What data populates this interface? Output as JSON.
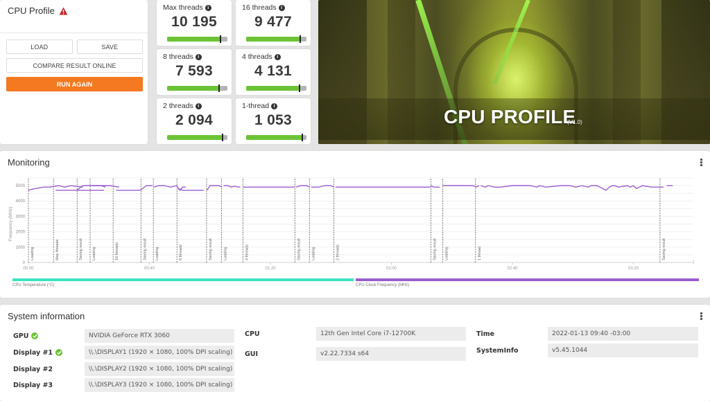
{
  "profile_panel": {
    "title": "CPU Profile",
    "warning_icon": "warning-triangle-icon",
    "buttons": {
      "load": "LOAD",
      "save": "SAVE",
      "compare": "COMPARE RESULT ONLINE",
      "run_again": "RUN AGAIN"
    }
  },
  "scores": [
    {
      "label": "Max threads",
      "value": "10 195",
      "bar_pct": 88,
      "marker_pct": 88
    },
    {
      "label": "16 threads",
      "value": "9 477",
      "bar_pct": 90,
      "marker_pct": 90
    },
    {
      "label": "8 threads",
      "value": "7 593",
      "bar_pct": 86,
      "marker_pct": 86
    },
    {
      "label": "4 threads",
      "value": "4 131",
      "bar_pct": 89,
      "marker_pct": 89
    },
    {
      "label": "2 threads",
      "value": "2 094",
      "bar_pct": 92,
      "marker_pct": 92
    },
    {
      "label": "1-thread",
      "value": "1 053",
      "bar_pct": 93,
      "marker_pct": 93
    }
  ],
  "hero": {
    "title": "CPU PROFILE",
    "version": "(V1.0)"
  },
  "monitoring": {
    "title": "Monitoring",
    "legend": [
      {
        "label": "CPU Temperature (°C)",
        "color": "#3de3c1"
      },
      {
        "label": "CPU Clock Frequency (MHz)",
        "color": "#9a5fcf"
      }
    ]
  },
  "chart_data": {
    "type": "line",
    "title": "Monitoring",
    "xlabel": "",
    "ylabel": "Frequency (MHz)",
    "ylim": [
      0,
      5500
    ],
    "yticks": [
      0,
      1000,
      2000,
      3000,
      4000,
      5000
    ],
    "xticks": [
      "00:00",
      "00:40",
      "01:20",
      "02:00",
      "02:40",
      "03:20"
    ],
    "grid": true,
    "legend_position": "bottom",
    "series": [
      {
        "name": "CPU Clock Frequency (MHz)",
        "color": "#9a5fcf",
        "segments": [
          {
            "x_sec": [
              0,
              2,
              5,
              7,
              10,
              12,
              14,
              16,
              18
            ],
            "y": [
              4700,
              4800,
              4900,
              4900,
              5000,
              4900,
              5000,
              4950,
              4900
            ]
          },
          {
            "x_sec": [
              9,
              25
            ],
            "y": [
              4700,
              4700
            ]
          },
          {
            "x_sec": [
              16,
              18,
              20,
              24,
              25.5
            ],
            "y": [
              4700,
              5000,
              5000,
              5000,
              4900
            ]
          },
          {
            "x_sec": [
              21,
              27,
              30
            ],
            "y": [
              5000,
              5000,
              4900
            ]
          },
          {
            "x_sec": [
              29,
              37
            ],
            "y": [
              4700,
              4700
            ]
          },
          {
            "x_sec": [
              37,
              39,
              41
            ],
            "y": [
              4700,
              5000,
              5000
            ]
          },
          {
            "x_sec": [
              41.5,
              43,
              45,
              47,
              49,
              50,
              51,
              52
            ],
            "y": [
              4900,
              5000,
              5000,
              4900,
              5000,
              4700,
              4900,
              4900
            ]
          },
          {
            "x_sec": [
              49.5,
              51,
              58
            ],
            "y": [
              4800,
              4700,
              4700
            ]
          },
          {
            "x_sec": [
              59,
              60,
              61,
              63,
              64
            ],
            "y": [
              4700,
              5000,
              5000,
              5000,
              4900
            ]
          },
          {
            "x_sec": [
              64.5,
              66,
              67,
              68,
              70
            ],
            "y": [
              5000,
              5000,
              4900,
              4950,
              4900
            ]
          },
          {
            "x_sec": [
              71,
              88
            ],
            "y": [
              4900,
              4900
            ]
          },
          {
            "x_sec": [
              88.5,
              90,
              92,
              93
            ],
            "y": [
              4900,
              5000,
              5000,
              4900
            ]
          },
          {
            "x_sec": [
              93.5,
              96,
              98,
              100,
              101
            ],
            "y": [
              4900,
              4900,
              5000,
              5000,
              4900
            ]
          },
          {
            "x_sec": [
              101.5,
              133
            ],
            "y": [
              4900,
              4900
            ]
          },
          {
            "x_sec": [
              133,
              134,
              136
            ],
            "y": [
              5000,
              4900,
              4900
            ]
          },
          {
            "x_sec": [
              137,
              139,
              147,
              148,
              149
            ],
            "y": [
              5000,
              5000,
              5000,
              4900,
              5000
            ]
          },
          {
            "x_sec": [
              149.5,
              151,
              152,
              154,
              156,
              160,
              166,
              168,
              169,
              171,
              176,
              179,
              181,
              183,
              185,
              186,
              188,
              191,
              192,
              193,
              194,
              195,
              198,
              199,
              200,
              201,
              203,
              206,
              210
            ],
            "y": [
              5000,
              4900,
              5000,
              4900,
              4900,
              5000,
              5000,
              4900,
              5000,
              4900,
              5000,
              5000,
              4900,
              5000,
              4900,
              5000,
              5000,
              4700,
              4900,
              5000,
              5000,
              4900,
              5000,
              4900,
              5000,
              4800,
              5000,
              4900,
              4900
            ]
          },
          {
            "x_sec": [
              211,
              213
            ],
            "y": [
              5000,
              5000
            ]
          }
        ]
      },
      {
        "name": "CPU Temperature (°C)",
        "color": "#3de3c1",
        "segments": []
      }
    ],
    "phase_markers": [
      {
        "x_sec": 0,
        "label": "Loading"
      },
      {
        "x_sec": 8.3,
        "label": "Max threads"
      },
      {
        "x_sec": 16.1,
        "label": "Saving result"
      },
      {
        "x_sec": 20.4,
        "label": "Loading"
      },
      {
        "x_sec": 28.0,
        "label": "16 threads"
      },
      {
        "x_sec": 37.2,
        "label": "Saving result"
      },
      {
        "x_sec": 41.3,
        "label": "Loading"
      },
      {
        "x_sec": 49.1,
        "label": "8 threads"
      },
      {
        "x_sec": 58.9,
        "label": "Saving result"
      },
      {
        "x_sec": 63.8,
        "label": "Loading"
      },
      {
        "x_sec": 70.9,
        "label": "4 threads"
      },
      {
        "x_sec": 88.1,
        "label": "Saving result"
      },
      {
        "x_sec": 92.9,
        "label": "Loading"
      },
      {
        "x_sec": 101.0,
        "label": "2 threads"
      },
      {
        "x_sec": 133.1,
        "label": "Saving result"
      },
      {
        "x_sec": 137.0,
        "label": "Loading"
      },
      {
        "x_sec": 147.8,
        "label": "1 thread"
      },
      {
        "x_sec": 208.8,
        "label": "Saving result"
      }
    ]
  },
  "system_info": {
    "title": "System information",
    "left": [
      {
        "label": "GPU",
        "value": "NVIDIA GeForce RTX 3060",
        "check": true
      },
      {
        "label": "Display #1",
        "value": "\\\\.\\DISPLAY1 (1920 × 1080, 100% DPI scaling)",
        "check": true
      },
      {
        "label": "Display #2",
        "value": "\\\\.\\DISPLAY2 (1920 × 1080, 100% DPI scaling)",
        "check": false
      },
      {
        "label": "Display #3",
        "value": "\\\\.\\DISPLAY3 (1920 × 1080, 100% DPI scaling)",
        "check": false
      }
    ],
    "middle": [
      {
        "label": "CPU",
        "value": "12th Gen Intel Core i7-12700K"
      },
      {
        "label": "GUI",
        "value": "v2.22.7334 s64"
      }
    ],
    "right": [
      {
        "label": "Time",
        "value": "2022-01-13 09:40 -03:00"
      },
      {
        "label": "SystemInfo",
        "value": "v5.45.1044"
      }
    ]
  },
  "colors": {
    "accent_orange": "#f47920",
    "score_green": "#6cc335",
    "freq_purple": "#9a5fcf",
    "temp_teal": "#3de3c1",
    "check_green": "#6cc335",
    "warning_red": "#c0272d"
  }
}
